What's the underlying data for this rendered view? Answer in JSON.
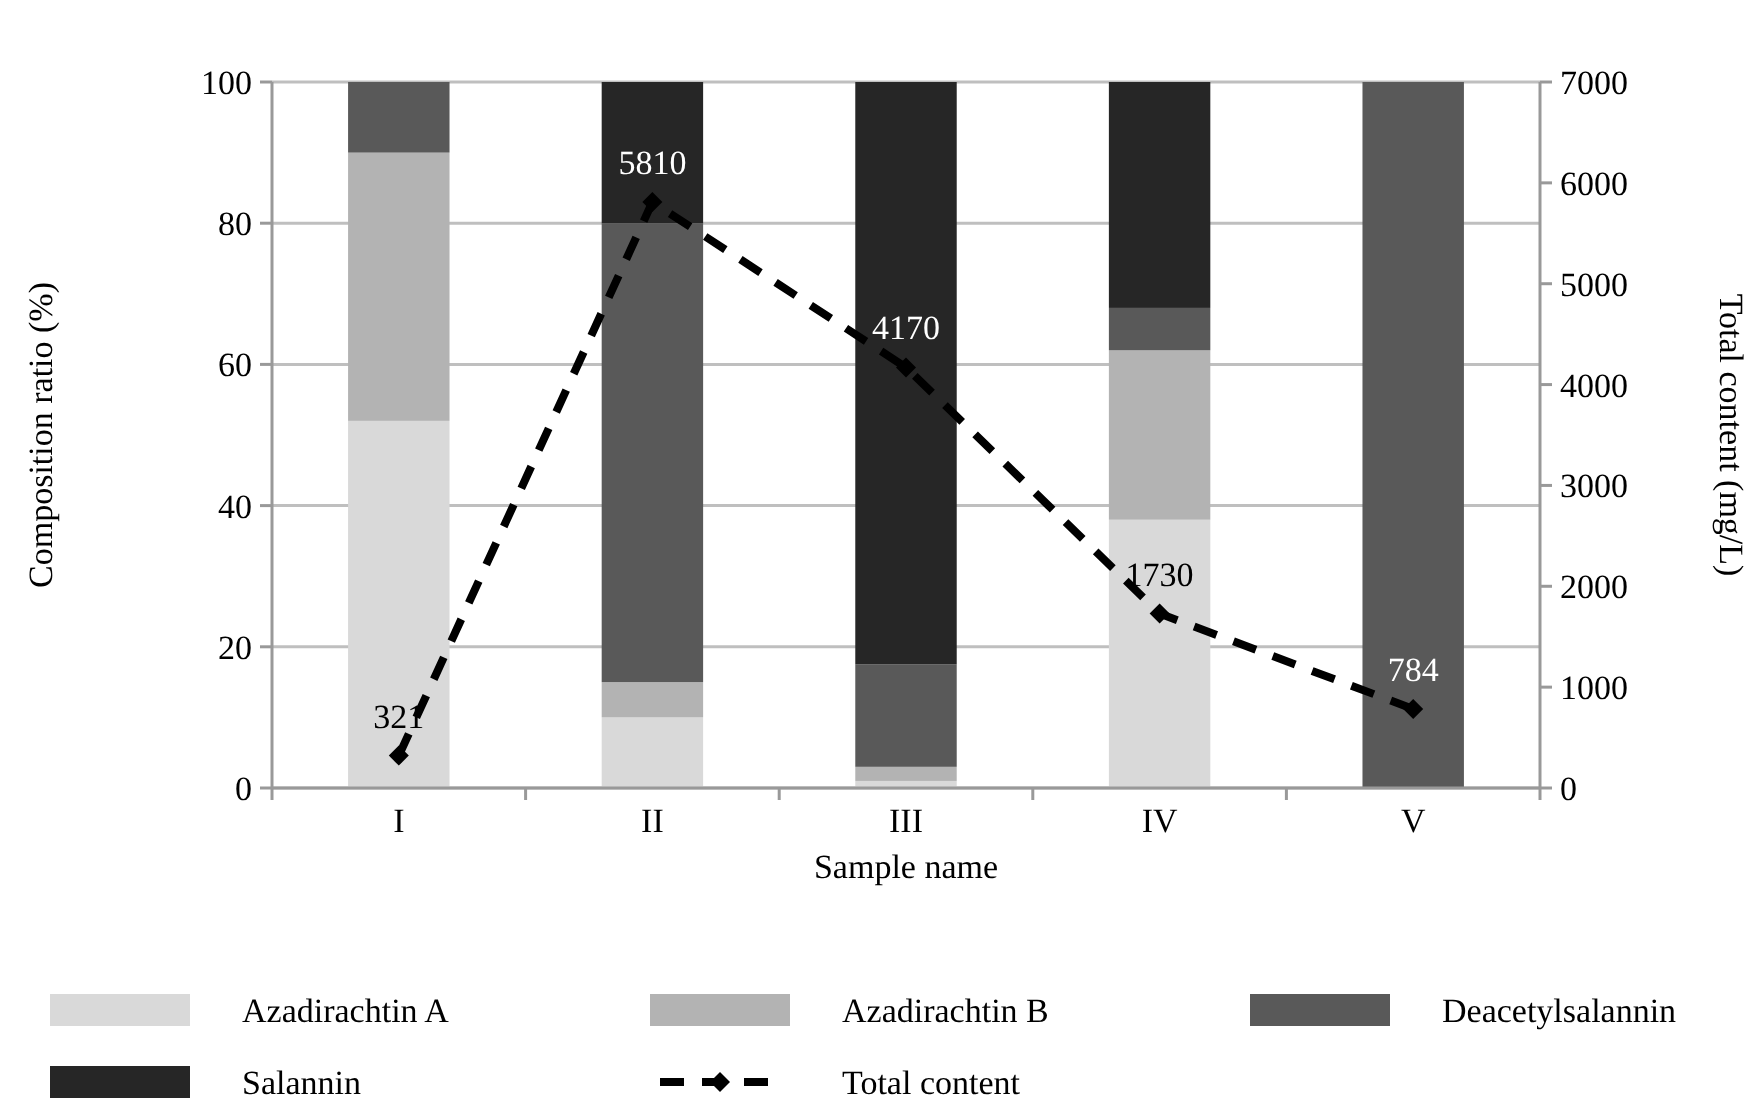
{
  "chart_data": {
    "type": "bar",
    "stacked": true,
    "xlabel": "Sample name",
    "ylabel": "Composition ratio (%)",
    "y2label": "Total content (mg/L)",
    "categories": [
      "I",
      "II",
      "III",
      "IV",
      "V"
    ],
    "series": [
      {
        "name": "Azadirachtin A",
        "color": "#d9d9d9",
        "values": [
          52,
          10,
          1,
          38,
          0
        ]
      },
      {
        "name": "Azadirachtin B",
        "color": "#b3b3b3",
        "values": [
          38,
          5,
          2,
          24,
          0
        ]
      },
      {
        "name": "Deacetylsalannin",
        "color": "#595959",
        "values": [
          10,
          65,
          14.5,
          6,
          100
        ]
      },
      {
        "name": "Salannin",
        "color": "#262626",
        "values": [
          0,
          20,
          82.5,
          32,
          0
        ]
      },
      {
        "name": "Total content",
        "type": "line",
        "axis": "y2",
        "color": "#000000",
        "line_style": "dashed",
        "marker": "diamond",
        "values": [
          321,
          5810,
          4170,
          1730,
          784
        ],
        "value_labels": [
          "321",
          "5810",
          "4170",
          "1730",
          "784"
        ]
      }
    ],
    "ylim": [
      0,
      100
    ],
    "yticks": [
      0,
      20,
      40,
      60,
      80,
      100
    ],
    "y2lim": [
      0,
      7000
    ],
    "y2ticks": [
      0,
      1000,
      2000,
      3000,
      4000,
      5000,
      6000,
      7000
    ],
    "grid": "y",
    "legend": "bottom"
  }
}
